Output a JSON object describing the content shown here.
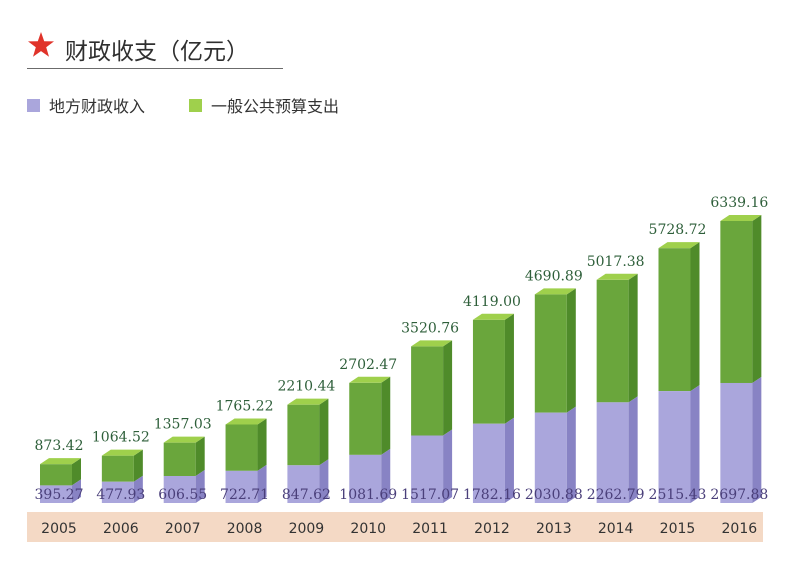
{
  "title": "财政收支（亿元）",
  "colors": {
    "revenue_front": "#aaa6dc",
    "revenue_side": "#8883c4",
    "spending_front": "#6aa63c",
    "spending_side": "#4f8b2a",
    "spending_top": "#9fd04c",
    "star": "#e0332a",
    "axis_band": "#f4d9c5",
    "value_text": "#2e5f3a",
    "base_text": "#4a3f7a"
  },
  "chart_data": {
    "type": "bar",
    "title": "财政收支（亿元）",
    "legend_position": "top-left",
    "categories": [
      "2005",
      "2006",
      "2007",
      "2008",
      "2009",
      "2010",
      "2011",
      "2012",
      "2013",
      "2014",
      "2015",
      "2016"
    ],
    "series": [
      {
        "name": "地方财政收入",
        "color": "#aaa6dc",
        "values": [
          395.27,
          477.93,
          606.55,
          722.71,
          847.62,
          1081.69,
          1517.07,
          1782.16,
          2030.88,
          2262.79,
          2515.43,
          2697.88
        ]
      },
      {
        "name": "一般公共预算支出",
        "color": "#6aa63c",
        "values": [
          873.42,
          1064.52,
          1357.03,
          1765.22,
          2210.44,
          2702.47,
          3520.76,
          4119.0,
          4690.89,
          5017.38,
          5728.72,
          6339.16
        ]
      }
    ],
    "revenue_labels": [
      "395.27",
      "477.93",
      "606.55",
      "722.71",
      "847.62",
      "1081.69",
      "1517.07",
      "1782.16",
      "2030.88",
      "2262.79",
      "2515.43",
      "2697.88"
    ],
    "spending_labels": [
      "873.42",
      "1064.52",
      "1357.03",
      "1765.22",
      "2210.44",
      "2702.47",
      "3520.76",
      "4119.00",
      "4690.89",
      "5017.38",
      "5728.72",
      "6339.16"
    ],
    "ylim": [
      0,
      6339.16
    ],
    "grid": false
  }
}
